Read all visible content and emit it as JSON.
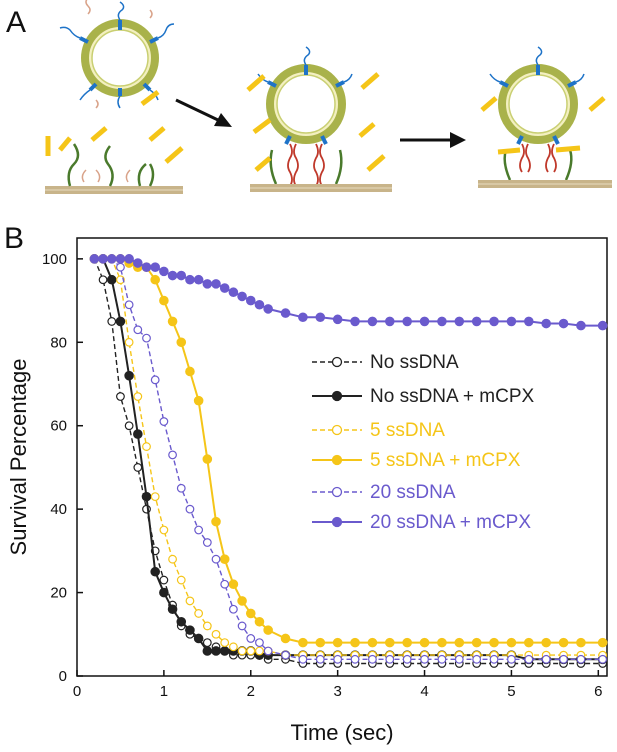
{
  "panels": {
    "a_label": "A",
    "b_label": "B"
  },
  "colors": {
    "black": "#222222",
    "yellow": "#f5c518",
    "purple": "#6a5acd",
    "membrane": "#c8b48a",
    "vesicle_fill": "#f3f0c0",
    "vesicle_ring": "#a9b24a",
    "anchor_blue": "#1e73c8",
    "dna_red": "#c0392b",
    "tether_green": "#4a7a2c",
    "ssdna_pink": "#d9a38a"
  },
  "chart_data": {
    "type": "line",
    "title": "",
    "xlabel": "Time (sec)",
    "ylabel": "Survival Percentage",
    "xlim": [
      0,
      6.1
    ],
    "ylim": [
      0,
      105
    ],
    "xticks": [
      0,
      1,
      2,
      3,
      4,
      5,
      6
    ],
    "yticks": [
      0,
      20,
      40,
      60,
      80,
      100
    ],
    "legend_position": "center-right",
    "series": [
      {
        "name": "No ssDNA",
        "color": "#222222",
        "style": "dashed",
        "marker": "open",
        "x": [
          0.2,
          0.3,
          0.4,
          0.5,
          0.6,
          0.7,
          0.8,
          0.9,
          1.0,
          1.1,
          1.2,
          1.3,
          1.4,
          1.5,
          1.6,
          1.7,
          1.8,
          1.9,
          2.0,
          2.1,
          2.2,
          2.4,
          2.6,
          2.8,
          3.0,
          3.2,
          3.4,
          3.6,
          3.8,
          4.0,
          4.2,
          4.4,
          4.6,
          4.8,
          5.0,
          5.2,
          5.4,
          5.6,
          5.8,
          6.05
        ],
        "y": [
          100,
          95,
          85,
          67,
          60,
          50,
          40,
          30,
          23,
          17,
          12,
          10,
          9,
          8,
          7,
          6,
          5,
          5,
          5,
          5,
          4,
          4,
          3,
          3,
          3,
          3,
          3,
          3,
          3,
          3,
          3,
          3,
          3,
          3,
          3,
          3,
          3,
          3,
          3,
          3
        ]
      },
      {
        "name": "No ssDNA + mCPX",
        "color": "#222222",
        "style": "solid",
        "marker": "filled",
        "x": [
          0.2,
          0.3,
          0.4,
          0.5,
          0.6,
          0.7,
          0.8,
          0.9,
          1.0,
          1.1,
          1.2,
          1.3,
          1.4,
          1.5,
          1.6,
          1.7,
          1.8,
          1.9,
          2.0,
          2.1,
          2.2,
          2.4,
          2.6,
          2.8,
          3.0,
          3.2,
          3.4,
          3.6,
          3.8,
          4.0,
          4.2,
          4.4,
          4.6,
          4.8,
          5.0,
          5.2,
          5.4,
          5.6,
          5.8,
          6.05
        ],
        "y": [
          100,
          100,
          95,
          85,
          72,
          58,
          43,
          25,
          20,
          16,
          13,
          11,
          9,
          6,
          6,
          6,
          6,
          6,
          6,
          5,
          5,
          5,
          5,
          5,
          5,
          5,
          5,
          5,
          5,
          5,
          5,
          5,
          5,
          5,
          5,
          4,
          4,
          4,
          4,
          4
        ]
      },
      {
        "name": "5 ssDNA",
        "color": "#f5c518",
        "style": "dashed",
        "marker": "open",
        "x": [
          0.2,
          0.3,
          0.4,
          0.5,
          0.6,
          0.7,
          0.8,
          0.9,
          1.0,
          1.1,
          1.2,
          1.3,
          1.4,
          1.5,
          1.6,
          1.7,
          1.8,
          1.9,
          2.0,
          2.1,
          2.2,
          2.4,
          2.6,
          2.8,
          3.0,
          3.2,
          3.4,
          3.6,
          3.8,
          4.0,
          4.2,
          4.4,
          4.6,
          4.8,
          5.0,
          5.2,
          5.4,
          5.6,
          5.8,
          6.05
        ],
        "y": [
          100,
          100,
          100,
          95,
          80,
          67,
          55,
          43,
          35,
          28,
          23,
          18,
          15,
          12,
          10,
          8,
          7,
          6,
          6,
          6,
          6,
          5,
          5,
          5,
          5,
          5,
          5,
          5,
          5,
          5,
          5,
          5,
          5,
          5,
          5,
          5,
          5,
          5,
          5,
          5
        ]
      },
      {
        "name": "5 ssDNA + mCPX",
        "color": "#f5c518",
        "style": "solid",
        "marker": "filled",
        "x": [
          0.2,
          0.3,
          0.4,
          0.5,
          0.6,
          0.7,
          0.8,
          0.9,
          1.0,
          1.1,
          1.2,
          1.3,
          1.4,
          1.5,
          1.6,
          1.7,
          1.8,
          1.9,
          2.0,
          2.1,
          2.2,
          2.4,
          2.6,
          2.8,
          3.0,
          3.2,
          3.4,
          3.6,
          3.8,
          4.0,
          4.2,
          4.4,
          4.6,
          4.8,
          5.0,
          5.2,
          5.4,
          5.6,
          5.8,
          6.05
        ],
        "y": [
          100,
          100,
          100,
          100,
          99,
          98,
          98,
          95,
          90,
          85,
          80,
          73,
          66,
          52,
          37,
          28,
          22,
          18,
          15,
          13,
          11,
          9,
          8,
          8,
          8,
          8,
          8,
          8,
          8,
          8,
          8,
          8,
          8,
          8,
          8,
          8,
          8,
          8,
          8,
          8
        ]
      },
      {
        "name": "20 ssDNA",
        "color": "#6a5acd",
        "style": "dashed",
        "marker": "open",
        "x": [
          0.2,
          0.3,
          0.4,
          0.5,
          0.6,
          0.7,
          0.8,
          0.9,
          1.0,
          1.1,
          1.2,
          1.3,
          1.4,
          1.5,
          1.6,
          1.7,
          1.8,
          1.9,
          2.0,
          2.1,
          2.2,
          2.4,
          2.6,
          2.8,
          3.0,
          3.2,
          3.4,
          3.6,
          3.8,
          4.0,
          4.2,
          4.4,
          4.6,
          4.8,
          5.0,
          5.2,
          5.4,
          5.6,
          5.8,
          6.05
        ],
        "y": [
          100,
          100,
          100,
          98,
          89,
          83,
          81,
          71,
          61,
          53,
          45,
          40,
          35,
          32,
          28,
          22,
          16,
          12,
          9,
          8,
          6,
          5,
          4,
          4,
          4,
          4,
          4,
          4,
          4,
          4,
          4,
          4,
          4,
          4,
          4,
          4,
          4,
          4,
          4,
          4
        ]
      },
      {
        "name": "20 ssDNA + mCPX",
        "color": "#6a5acd",
        "style": "solid",
        "marker": "filled",
        "x": [
          0.2,
          0.3,
          0.4,
          0.5,
          0.6,
          0.7,
          0.8,
          0.9,
          1.0,
          1.1,
          1.2,
          1.3,
          1.4,
          1.5,
          1.6,
          1.7,
          1.8,
          1.9,
          2.0,
          2.1,
          2.2,
          2.4,
          2.6,
          2.8,
          3.0,
          3.2,
          3.4,
          3.6,
          3.8,
          4.0,
          4.2,
          4.4,
          4.6,
          4.8,
          5.0,
          5.2,
          5.4,
          5.6,
          5.8,
          6.05
        ],
        "y": [
          100,
          100,
          100,
          100,
          100,
          99,
          98,
          98,
          97,
          96,
          96,
          95,
          95,
          94,
          94,
          93,
          92,
          91,
          90,
          89,
          88,
          87,
          86,
          86,
          85.5,
          85,
          85,
          85,
          85,
          85,
          85,
          85,
          85,
          85,
          85,
          85,
          84.5,
          84.5,
          84,
          84
        ]
      }
    ]
  }
}
